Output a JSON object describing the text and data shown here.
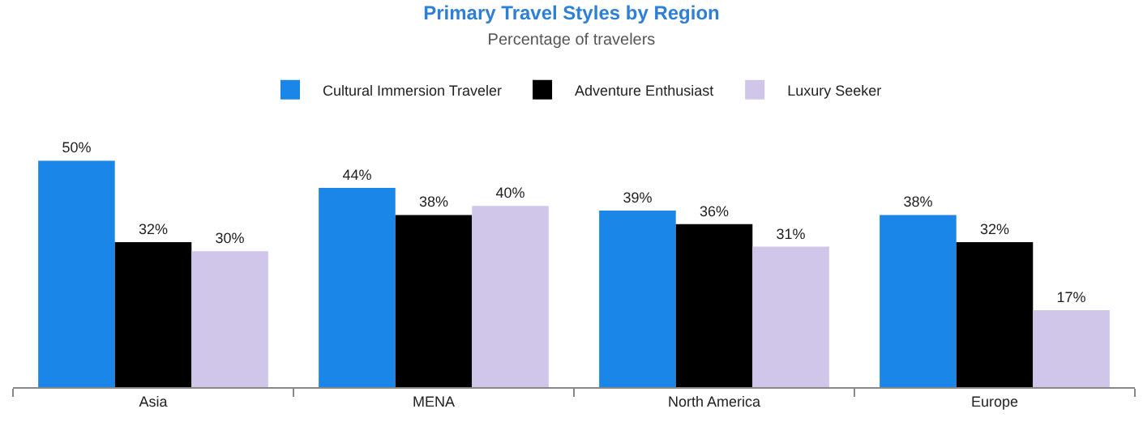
{
  "chart_data": {
    "type": "bar",
    "title": "Primary Travel Styles by Region",
    "subtitle": "Percentage of travelers",
    "categories": [
      "Asia",
      "MENA",
      "North America",
      "Europe"
    ],
    "series": [
      {
        "name": "Cultural Immersion Traveler",
        "color": "#1a86e8",
        "values": [
          50,
          44,
          39,
          38
        ],
        "value_labels": [
          "50%",
          "44%",
          "39%",
          "38%"
        ]
      },
      {
        "name": "Adventure Enthusiast",
        "color": "#000000",
        "values": [
          32,
          38,
          36,
          32
        ],
        "value_labels": [
          "32%",
          "38%",
          "36%",
          "32%"
        ]
      },
      {
        "name": "Luxury Seeker",
        "color": "#d0c6ea",
        "values": [
          30,
          40,
          31,
          17
        ],
        "value_labels": [
          "30%",
          "40%",
          "31%",
          "17%"
        ]
      }
    ],
    "legend": "top",
    "tick_labels": "x"
  }
}
